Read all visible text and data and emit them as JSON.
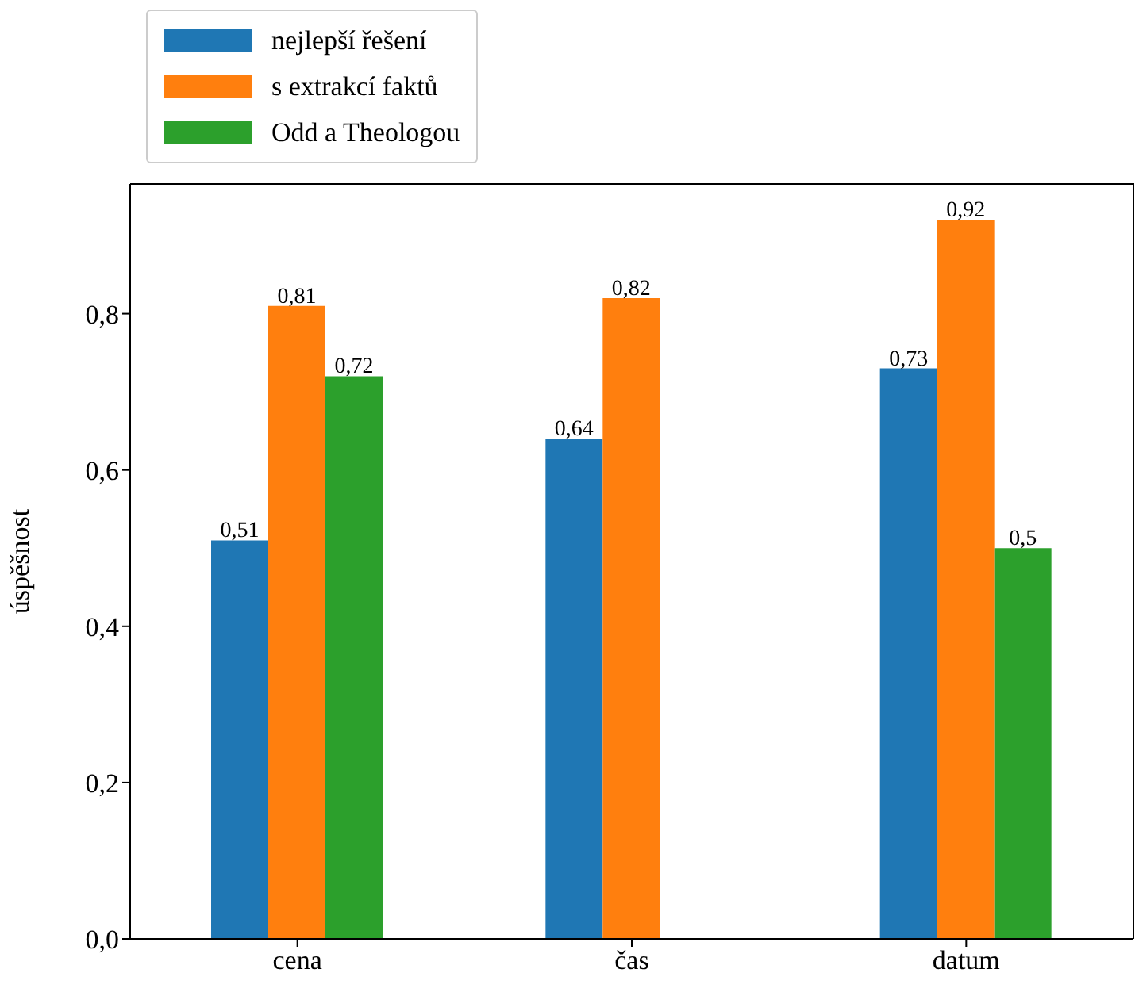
{
  "chart_data": {
    "type": "bar",
    "ylabel": "úspěšnost",
    "categories": [
      "cena",
      "čas",
      "datum"
    ],
    "series": [
      {
        "name": "nejlepší řešení",
        "color": "#1f77b4",
        "values": [
          0.51,
          0.64,
          0.73
        ],
        "value_labels": [
          "0,51",
          "0,64",
          "0,73"
        ]
      },
      {
        "name": "s extrakcí faktů",
        "color": "#ff7f0e",
        "values": [
          0.81,
          0.82,
          0.92
        ],
        "value_labels": [
          "0,81",
          "0,82",
          "0,92"
        ]
      },
      {
        "name": "Odd a Theologou",
        "color": "#2ca02c",
        "values": [
          0.72,
          null,
          0.5
        ],
        "value_labels": [
          "0,72",
          null,
          "0,5"
        ]
      }
    ],
    "ylim": [
      0,
      0.966
    ],
    "yticks": [
      {
        "value": 0,
        "label": "0,0"
      },
      {
        "value": 0.2,
        "label": "0,2"
      },
      {
        "value": 0.4,
        "label": "0,4"
      },
      {
        "value": 0.6,
        "label": "0,6"
      },
      {
        "value": 0.8,
        "label": "0,8"
      }
    ],
    "legend": "top left",
    "grid": false
  }
}
